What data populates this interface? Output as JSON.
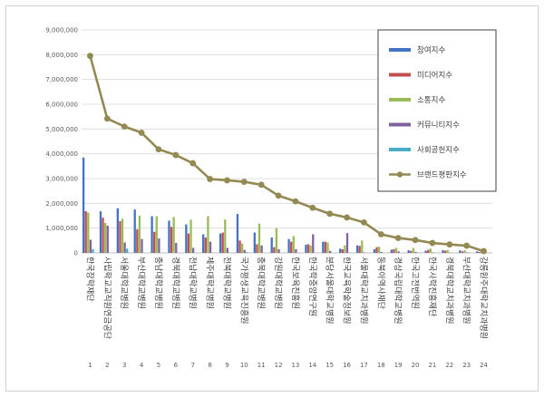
{
  "chart_data": {
    "type": "bar",
    "yticks": [
      "0",
      "1,000,000",
      "2,000,000",
      "3,000,000",
      "4,000,000",
      "5,000,000",
      "6,000,000",
      "7,000,000",
      "8,000,000",
      "9,000,000"
    ],
    "ylim": [
      0,
      9000000
    ],
    "grid": true,
    "legend_position": "top-right",
    "categories": [
      "한국장학재단",
      "사립학교교직원연금공단",
      "서울대학교병원",
      "부산대학교병원",
      "충남대학교병원",
      "경북대학교병원",
      "전남대학교병원",
      "제주대학교병원",
      "전북대학교병원",
      "국가평생교육진흥원",
      "충북대학교병원",
      "강원대학교병원",
      "한국보육진흥원",
      "한국학중앙연구원",
      "분당서울대학교병원",
      "한국교육학술정보원",
      "서울대학교치과병원",
      "동북아역사재단",
      "경상국립대학교병원",
      "한국고전번역원",
      "한국사학진흥재단",
      "경북대학교치과병원",
      "부산대학교치과병원",
      "강릉원주대학교치과병원"
    ],
    "numbers": [
      "1",
      "2",
      "3",
      "4",
      "5",
      "6",
      "7",
      "8",
      "9",
      "10",
      "11",
      "12",
      "13",
      "14",
      "15",
      "16",
      "17",
      "18",
      "19",
      "20",
      "21",
      "22",
      "23",
      "24"
    ],
    "series": [
      {
        "name": "참여지수",
        "color": "#4472c4",
        "kind": "bar",
        "values": [
          3850000,
          1680000,
          1800000,
          1750000,
          1480000,
          1300000,
          1150000,
          750000,
          780000,
          1570000,
          820000,
          620000,
          560000,
          330000,
          450000,
          170000,
          300000,
          150000,
          130000,
          110000,
          90000,
          110000,
          100000,
          60000
        ]
      },
      {
        "name": "미디어지수",
        "color": "#c0504d",
        "kind": "bar",
        "values": [
          1680000,
          1420000,
          1280000,
          950000,
          850000,
          1050000,
          780000,
          620000,
          820000,
          500000,
          350000,
          230000,
          450000,
          350000,
          450000,
          150000,
          280000,
          230000,
          150000,
          80000,
          120000,
          90000,
          60000,
          40000
        ]
      },
      {
        "name": "소통지수",
        "color": "#9bbb59",
        "kind": "bar",
        "values": [
          1630000,
          1210000,
          1380000,
          1500000,
          1480000,
          1450000,
          1340000,
          1480000,
          1350000,
          380000,
          1180000,
          1000000,
          680000,
          300000,
          420000,
          300000,
          500000,
          250000,
          200000,
          200000,
          170000,
          120000,
          110000,
          50000
        ]
      },
      {
        "name": "커뮤니티지수",
        "color": "#8064a2",
        "kind": "bar",
        "values": [
          530000,
          1100000,
          420000,
          560000,
          580000,
          400000,
          200000,
          450000,
          200000,
          120000,
          300000,
          150000,
          150000,
          750000,
          80000,
          800000,
          20000,
          40000,
          60000,
          40000,
          20000,
          10000,
          20000,
          20000
        ]
      },
      {
        "name": "사회공헌지수",
        "color": "#4bacc6",
        "kind": "bar",
        "values": [
          150000,
          0,
          170000,
          0,
          0,
          0,
          0,
          0,
          0,
          30000,
          0,
          0,
          0,
          0,
          0,
          0,
          0,
          0,
          0,
          0,
          0,
          0,
          0,
          0
        ]
      },
      {
        "name": "브랜드평판지수",
        "color": "#938953",
        "kind": "line",
        "values": [
          7950000,
          5420000,
          5100000,
          4850000,
          4180000,
          3950000,
          3620000,
          2980000,
          2930000,
          2870000,
          2750000,
          2310000,
          2080000,
          1820000,
          1580000,
          1430000,
          1230000,
          750000,
          600000,
          520000,
          400000,
          340000,
          290000,
          70000
        ]
      }
    ]
  }
}
